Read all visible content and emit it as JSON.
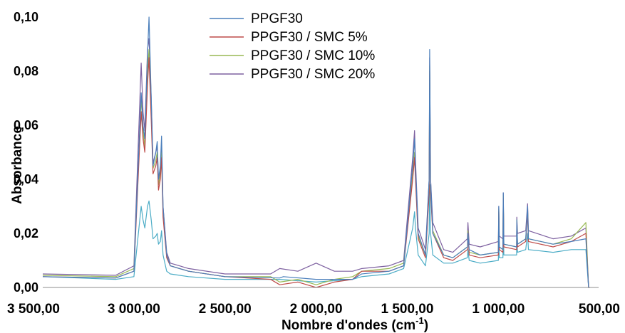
{
  "chart_data": {
    "type": "line",
    "xlabel": "Nombre d'ondes (cm",
    "xlabel_sup": "-1",
    "xlabel_end": ")",
    "ylabel": "Absorbance",
    "xlim": [
      3500,
      450
    ],
    "xaxis_reversed": true,
    "ylim": [
      0,
      0.1
    ],
    "x_ticks": [
      3500,
      3000,
      2500,
      2000,
      1500,
      1000,
      500
    ],
    "x_tick_labels": [
      "3 500,00",
      "3 000,00",
      "2 500,00",
      "2 000,00",
      "1 500,00",
      "1 000,00",
      "500,00"
    ],
    "y_ticks": [
      0,
      0.02,
      0.04,
      0.06,
      0.08,
      0.1
    ],
    "y_tick_labels": [
      "0,00",
      "0,02",
      "0,04",
      "0,06",
      "0,08",
      "0,10"
    ],
    "grid": false,
    "legend_position": "top-center",
    "series": [
      {
        "name": "PPGF30",
        "color": "#4a7ebb",
        "points": [
          [
            3500,
            0.004
          ],
          [
            3100,
            0.0035
          ],
          [
            3000,
            0.006
          ],
          [
            2960,
            0.072
          ],
          [
            2950,
            0.06
          ],
          [
            2940,
            0.055
          ],
          [
            2925,
            0.086
          ],
          [
            2917,
            0.1
          ],
          [
            2905,
            0.07
          ],
          [
            2895,
            0.045
          ],
          [
            2880,
            0.05
          ],
          [
            2872,
            0.054
          ],
          [
            2865,
            0.04
          ],
          [
            2855,
            0.045
          ],
          [
            2848,
            0.056
          ],
          [
            2840,
            0.03
          ],
          [
            2820,
            0.012
          ],
          [
            2800,
            0.008
          ],
          [
            2700,
            0.006
          ],
          [
            2500,
            0.004
          ],
          [
            2200,
            0.0035
          ],
          [
            2180,
            0.004
          ],
          [
            2000,
            0.003
          ],
          [
            1800,
            0.003
          ],
          [
            1750,
            0.005
          ],
          [
            1600,
            0.006
          ],
          [
            1520,
            0.008
          ],
          [
            1470,
            0.045
          ],
          [
            1460,
            0.055
          ],
          [
            1455,
            0.045
          ],
          [
            1440,
            0.02
          ],
          [
            1400,
            0.012
          ],
          [
            1380,
            0.04
          ],
          [
            1377,
            0.088
          ],
          [
            1372,
            0.04
          ],
          [
            1360,
            0.02
          ],
          [
            1300,
            0.012
          ],
          [
            1250,
            0.011
          ],
          [
            1170,
            0.015
          ],
          [
            1167,
            0.02
          ],
          [
            1160,
            0.014
          ],
          [
            1100,
            0.012
          ],
          [
            1000,
            0.013
          ],
          [
            998,
            0.03
          ],
          [
            995,
            0.015
          ],
          [
            975,
            0.014
          ],
          [
            973,
            0.035
          ],
          [
            970,
            0.016
          ],
          [
            900,
            0.015
          ],
          [
            899,
            0.025
          ],
          [
            895,
            0.016
          ],
          [
            850,
            0.018
          ],
          [
            840,
            0.03
          ],
          [
            835,
            0.018
          ],
          [
            700,
            0.016
          ],
          [
            600,
            0.017
          ],
          [
            520,
            0.018
          ],
          [
            505,
            0.0
          ],
          [
            500,
            0.0
          ]
        ]
      },
      {
        "name": "PPGF30 / SMC 5%",
        "color": "#be4b48",
        "points": [
          [
            3500,
            0.004
          ],
          [
            3100,
            0.0035
          ],
          [
            3000,
            0.006
          ],
          [
            2960,
            0.065
          ],
          [
            2950,
            0.055
          ],
          [
            2940,
            0.05
          ],
          [
            2925,
            0.075
          ],
          [
            2917,
            0.085
          ],
          [
            2905,
            0.062
          ],
          [
            2895,
            0.042
          ],
          [
            2880,
            0.045
          ],
          [
            2872,
            0.048
          ],
          [
            2865,
            0.036
          ],
          [
            2855,
            0.04
          ],
          [
            2848,
            0.048
          ],
          [
            2840,
            0.026
          ],
          [
            2820,
            0.011
          ],
          [
            2800,
            0.008
          ],
          [
            2700,
            0.006
          ],
          [
            2500,
            0.004
          ],
          [
            2250,
            0.003
          ],
          [
            2200,
            0.001
          ],
          [
            2100,
            0.002
          ],
          [
            2000,
            0.0
          ],
          [
            1900,
            0.002
          ],
          [
            1800,
            0.003
          ],
          [
            1750,
            0.006
          ],
          [
            1600,
            0.006
          ],
          [
            1520,
            0.008
          ],
          [
            1470,
            0.04
          ],
          [
            1460,
            0.048
          ],
          [
            1455,
            0.04
          ],
          [
            1440,
            0.018
          ],
          [
            1400,
            0.011
          ],
          [
            1380,
            0.035
          ],
          [
            1377,
            0.08
          ],
          [
            1372,
            0.035
          ],
          [
            1360,
            0.02
          ],
          [
            1300,
            0.011
          ],
          [
            1250,
            0.01
          ],
          [
            1170,
            0.014
          ],
          [
            1167,
            0.02
          ],
          [
            1160,
            0.012
          ],
          [
            1100,
            0.011
          ],
          [
            1000,
            0.012
          ],
          [
            998,
            0.028
          ],
          [
            995,
            0.014
          ],
          [
            975,
            0.013
          ],
          [
            973,
            0.033
          ],
          [
            970,
            0.015
          ],
          [
            900,
            0.014
          ],
          [
            899,
            0.024
          ],
          [
            895,
            0.015
          ],
          [
            850,
            0.017
          ],
          [
            840,
            0.028
          ],
          [
            835,
            0.017
          ],
          [
            700,
            0.015
          ],
          [
            600,
            0.017
          ],
          [
            520,
            0.02
          ],
          [
            505,
            0.0
          ],
          [
            500,
            0.0
          ]
        ]
      },
      {
        "name": "PPGF30 / SMC 10%",
        "color": "#98b954",
        "points": [
          [
            3500,
            0.0045
          ],
          [
            3100,
            0.004
          ],
          [
            3000,
            0.007
          ],
          [
            2960,
            0.07
          ],
          [
            2950,
            0.058
          ],
          [
            2940,
            0.052
          ],
          [
            2925,
            0.08
          ],
          [
            2917,
            0.088
          ],
          [
            2905,
            0.065
          ],
          [
            2895,
            0.044
          ],
          [
            2880,
            0.047
          ],
          [
            2872,
            0.05
          ],
          [
            2865,
            0.038
          ],
          [
            2855,
            0.042
          ],
          [
            2848,
            0.05
          ],
          [
            2840,
            0.028
          ],
          [
            2820,
            0.012
          ],
          [
            2800,
            0.008
          ],
          [
            2700,
            0.006
          ],
          [
            2500,
            0.004
          ],
          [
            2250,
            0.004
          ],
          [
            2200,
            0.002
          ],
          [
            2100,
            0.003
          ],
          [
            2000,
            0.001
          ],
          [
            1900,
            0.003
          ],
          [
            1800,
            0.004
          ],
          [
            1750,
            0.006
          ],
          [
            1600,
            0.007
          ],
          [
            1520,
            0.009
          ],
          [
            1470,
            0.042
          ],
          [
            1460,
            0.05
          ],
          [
            1455,
            0.042
          ],
          [
            1440,
            0.019
          ],
          [
            1400,
            0.012
          ],
          [
            1380,
            0.036
          ],
          [
            1377,
            0.082
          ],
          [
            1372,
            0.036
          ],
          [
            1360,
            0.021
          ],
          [
            1300,
            0.012
          ],
          [
            1250,
            0.011
          ],
          [
            1170,
            0.015
          ],
          [
            1167,
            0.021
          ],
          [
            1160,
            0.013
          ],
          [
            1100,
            0.012
          ],
          [
            1000,
            0.013
          ],
          [
            998,
            0.029
          ],
          [
            995,
            0.015
          ],
          [
            975,
            0.014
          ],
          [
            973,
            0.034
          ],
          [
            970,
            0.016
          ],
          [
            900,
            0.015
          ],
          [
            899,
            0.025
          ],
          [
            895,
            0.016
          ],
          [
            850,
            0.018
          ],
          [
            840,
            0.029
          ],
          [
            835,
            0.018
          ],
          [
            700,
            0.016
          ],
          [
            600,
            0.018
          ],
          [
            520,
            0.024
          ],
          [
            505,
            0.0
          ],
          [
            500,
            0.0
          ]
        ]
      },
      {
        "name": "PPGF30 / SMC 20%",
        "color": "#7d60a0",
        "points": [
          [
            3500,
            0.005
          ],
          [
            3100,
            0.0045
          ],
          [
            3000,
            0.008
          ],
          [
            2960,
            0.083
          ],
          [
            2950,
            0.065
          ],
          [
            2940,
            0.058
          ],
          [
            2925,
            0.088
          ],
          [
            2917,
            0.092
          ],
          [
            2905,
            0.07
          ],
          [
            2895,
            0.046
          ],
          [
            2880,
            0.05
          ],
          [
            2872,
            0.052
          ],
          [
            2865,
            0.04
          ],
          [
            2855,
            0.043
          ],
          [
            2848,
            0.052
          ],
          [
            2840,
            0.03
          ],
          [
            2820,
            0.013
          ],
          [
            2800,
            0.009
          ],
          [
            2700,
            0.007
          ],
          [
            2500,
            0.005
          ],
          [
            2250,
            0.005
          ],
          [
            2200,
            0.007
          ],
          [
            2100,
            0.006
          ],
          [
            2000,
            0.009
          ],
          [
            1900,
            0.006
          ],
          [
            1800,
            0.006
          ],
          [
            1750,
            0.007
          ],
          [
            1600,
            0.008
          ],
          [
            1520,
            0.01
          ],
          [
            1470,
            0.048
          ],
          [
            1460,
            0.058
          ],
          [
            1455,
            0.047
          ],
          [
            1440,
            0.022
          ],
          [
            1400,
            0.014
          ],
          [
            1380,
            0.04
          ],
          [
            1377,
            0.085
          ],
          [
            1372,
            0.04
          ],
          [
            1360,
            0.024
          ],
          [
            1300,
            0.014
          ],
          [
            1250,
            0.013
          ],
          [
            1170,
            0.018
          ],
          [
            1167,
            0.024
          ],
          [
            1160,
            0.016
          ],
          [
            1100,
            0.015
          ],
          [
            1000,
            0.017
          ],
          [
            998,
            0.03
          ],
          [
            995,
            0.019
          ],
          [
            975,
            0.018
          ],
          [
            973,
            0.035
          ],
          [
            970,
            0.019
          ],
          [
            900,
            0.019
          ],
          [
            899,
            0.026
          ],
          [
            895,
            0.02
          ],
          [
            850,
            0.021
          ],
          [
            840,
            0.031
          ],
          [
            835,
            0.021
          ],
          [
            700,
            0.018
          ],
          [
            600,
            0.019
          ],
          [
            520,
            0.022
          ],
          [
            505,
            0.0
          ],
          [
            500,
            0.0
          ]
        ]
      },
      {
        "name": "",
        "color": "#4bacc6",
        "points": [
          [
            3500,
            0.004
          ],
          [
            3100,
            0.003
          ],
          [
            3000,
            0.004
          ],
          [
            2960,
            0.03
          ],
          [
            2950,
            0.025
          ],
          [
            2940,
            0.022
          ],
          [
            2925,
            0.03
          ],
          [
            2917,
            0.032
          ],
          [
            2905,
            0.025
          ],
          [
            2895,
            0.018
          ],
          [
            2880,
            0.019
          ],
          [
            2872,
            0.02
          ],
          [
            2865,
            0.016
          ],
          [
            2855,
            0.017
          ],
          [
            2848,
            0.021
          ],
          [
            2840,
            0.012
          ],
          [
            2820,
            0.006
          ],
          [
            2800,
            0.005
          ],
          [
            2700,
            0.004
          ],
          [
            2500,
            0.003
          ],
          [
            2200,
            0.003
          ],
          [
            2000,
            0.002
          ],
          [
            1800,
            0.003
          ],
          [
            1750,
            0.004
          ],
          [
            1600,
            0.005
          ],
          [
            1520,
            0.007
          ],
          [
            1470,
            0.022
          ],
          [
            1460,
            0.028
          ],
          [
            1455,
            0.022
          ],
          [
            1440,
            0.012
          ],
          [
            1400,
            0.008
          ],
          [
            1380,
            0.02
          ],
          [
            1377,
            0.038
          ],
          [
            1372,
            0.02
          ],
          [
            1360,
            0.012
          ],
          [
            1300,
            0.009
          ],
          [
            1250,
            0.009
          ],
          [
            1170,
            0.011
          ],
          [
            1167,
            0.014
          ],
          [
            1160,
            0.01
          ],
          [
            1100,
            0.009
          ],
          [
            1000,
            0.01
          ],
          [
            998,
            0.02
          ],
          [
            995,
            0.011
          ],
          [
            975,
            0.011
          ],
          [
            973,
            0.025
          ],
          [
            970,
            0.012
          ],
          [
            900,
            0.012
          ],
          [
            899,
            0.018
          ],
          [
            895,
            0.013
          ],
          [
            850,
            0.014
          ],
          [
            840,
            0.02
          ],
          [
            835,
            0.014
          ],
          [
            700,
            0.013
          ],
          [
            600,
            0.014
          ],
          [
            520,
            0.014
          ],
          [
            505,
            0.0
          ],
          [
            500,
            0.0
          ]
        ]
      }
    ]
  }
}
